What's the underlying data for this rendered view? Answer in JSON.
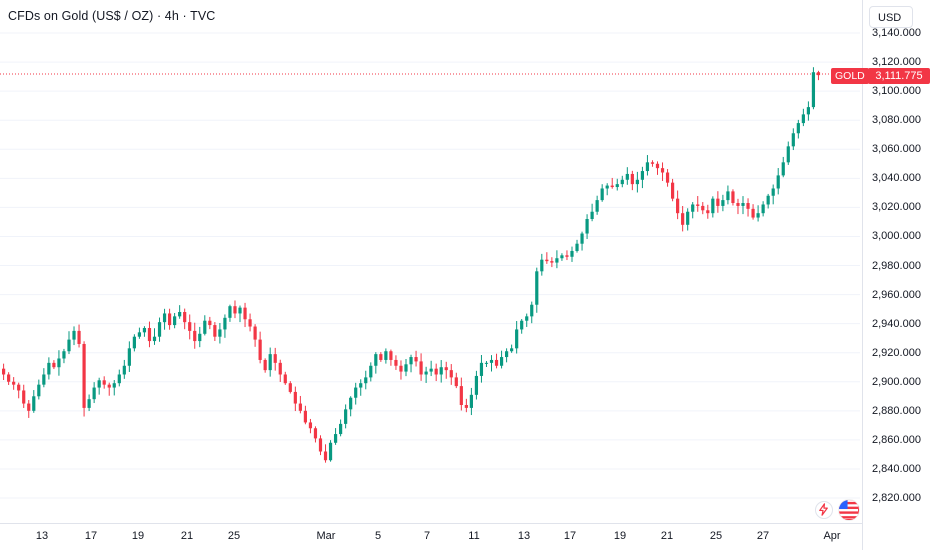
{
  "header": {
    "title": "CFDs on Gold (US$ / OZ) · 4h · TVC"
  },
  "price_scale": {
    "currency": "USD"
  },
  "last_price": {
    "symbol": "GOLD",
    "value": "3,111.775",
    "color": "#f23645"
  },
  "icons": {
    "alert": "lightning-icon",
    "flag": "us-flag-icon"
  },
  "colors": {
    "up": "#089981",
    "down": "#f23645",
    "grid": "#f0f3fa"
  },
  "chart_data": {
    "type": "candlestick",
    "title": "CFDs on Gold (US$ / OZ) · 4h · TVC",
    "y_ticks": [
      "3,140.000",
      "3,120.000",
      "3,100.000",
      "3,080.000",
      "3,060.000",
      "3,040.000",
      "3,020.000",
      "3,000.000",
      "2,980.000",
      "2,960.000",
      "2,940.000",
      "2,920.000",
      "2,900.000",
      "2,880.000",
      "2,860.000",
      "2,840.000",
      "2,820.000"
    ],
    "ylim": [
      2810,
      3147
    ],
    "x_ticks": [
      "13",
      "17",
      "19",
      "21",
      "25",
      "Mar",
      "5",
      "7",
      "11",
      "13",
      "17",
      "19",
      "21",
      "25",
      "27",
      "Apr"
    ],
    "last_price": 3111.775,
    "closes": [
      2905,
      2900,
      2898,
      2894,
      2885,
      2880,
      2890,
      2898,
      2905,
      2913,
      2910,
      2916,
      2921,
      2929,
      2935,
      2926,
      2882,
      2888,
      2896,
      2901,
      2898,
      2896,
      2899,
      2905,
      2911,
      2923,
      2931,
      2934,
      2937,
      2928,
      2931,
      2941,
      2947,
      2939,
      2945,
      2948,
      2941,
      2935,
      2928,
      2933,
      2942,
      2939,
      2931,
      2936,
      2944,
      2952,
      2947,
      2951,
      2943,
      2938,
      2929,
      2915,
      2908,
      2919,
      2913,
      2905,
      2899,
      2893,
      2885,
      2880,
      2872,
      2868,
      2861,
      2852,
      2846,
      2858,
      2864,
      2871,
      2881,
      2889,
      2896,
      2899,
      2903,
      2911,
      2919,
      2915,
      2921,
      2915,
      2911,
      2907,
      2912,
      2917,
      2914,
      2905,
      2907,
      2909,
      2905,
      2910,
      2908,
      2903,
      2897,
      2884,
      2882,
      2891,
      2904,
      2913,
      2913,
      2915,
      2911,
      2917,
      2921,
      2923,
      2936,
      2942,
      2945,
      2953,
      2976,
      2984,
      2983,
      2982,
      2985,
      2987,
      2986,
      2990,
      2995,
      3002,
      3012,
      3017,
      3025,
      3033,
      3035,
      3034,
      3036,
      3039,
      3043,
      3036,
      3039,
      3045,
      3051,
      3050,
      3047,
      3044,
      3037,
      3026,
      3016,
      3008,
      3017,
      3022,
      3021,
      3018,
      3016,
      3026,
      3021,
      3025,
      3031,
      3023,
      3021,
      3023,
      3019,
      3013,
      3016,
      3022,
      3028,
      3033,
      3042,
      3051,
      3062,
      3071,
      3078,
      3084,
      3089,
      3113,
      3111
    ]
  }
}
